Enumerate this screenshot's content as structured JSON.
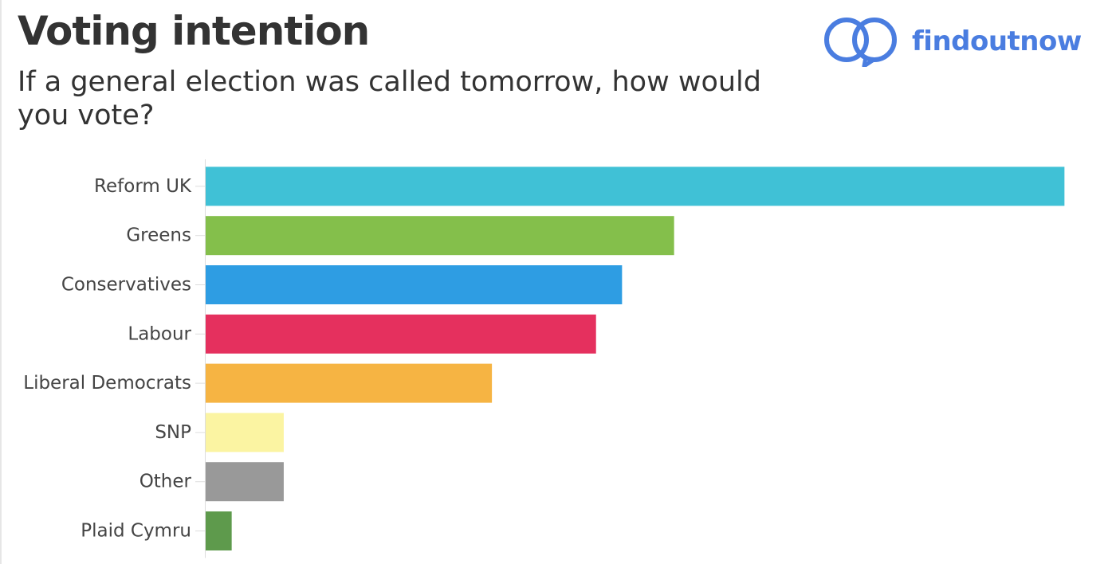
{
  "header": {
    "title": "Voting intention",
    "subtitle": "If a general election was called tomorrow, how would you vote?"
  },
  "brand": {
    "name": "findoutnow",
    "icon": "speech-bubbles-logo-icon",
    "color": "#4a7de0"
  },
  "chart_data": {
    "type": "bar",
    "orientation": "horizontal",
    "title": "Voting intention",
    "subtitle": "If a general election was called tomorrow, how would you vote?",
    "categories": [
      "Reform UK",
      "Greens",
      "Conservatives",
      "Labour",
      "Liberal Democrats",
      "SNP",
      "Other",
      "Plaid Cymru"
    ],
    "values": [
      33,
      18,
      16,
      15,
      11,
      3,
      3,
      1
    ],
    "colors": [
      "#40c1d6",
      "#84bf4b",
      "#2e9de3",
      "#e5305e",
      "#f6b443",
      "#fbf4a2",
      "#999999",
      "#5e9a4c"
    ],
    "xlim": [
      0,
      34
    ],
    "value_axis_visible": false,
    "grid": false,
    "legend": "none"
  }
}
